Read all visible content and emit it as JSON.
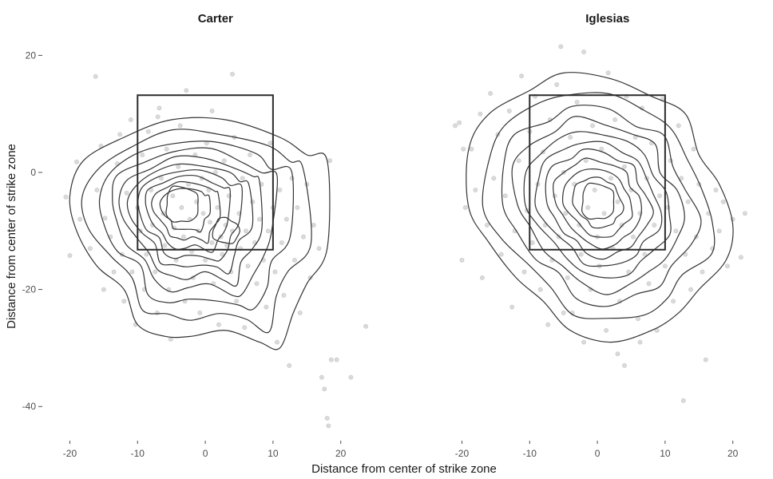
{
  "chart_data": {
    "type": "scatter",
    "xlabel": "Distance from center of strike zone",
    "ylabel": "Distance from center of strike zone",
    "xlim": [
      -21,
      23
    ],
    "ylim": [
      -45.5,
      22.5
    ],
    "x_ticks": [
      -20,
      -10,
      0,
      10,
      20
    ],
    "y_ticks": [
      -40,
      -20,
      0,
      20
    ],
    "strike_zone": {
      "x": [
        -10,
        10
      ],
      "y": [
        -13.2,
        13.2
      ]
    },
    "grid": false,
    "legend": "none",
    "facets": [
      {
        "name": "Carter",
        "density_peaks": [
          [
            -3.5,
            -5.5
          ],
          [
            3,
            -10
          ]
        ],
        "outer_contour": [
          [
            -20,
            -4
          ],
          [
            -18,
            2
          ],
          [
            -12,
            6
          ],
          [
            -5,
            9
          ],
          [
            3,
            9
          ],
          [
            11,
            6
          ],
          [
            15,
            3
          ],
          [
            18,
            2
          ],
          [
            18,
            -13
          ],
          [
            15,
            -19
          ],
          [
            13,
            -24
          ],
          [
            11,
            -30
          ],
          [
            8,
            -29
          ],
          [
            3,
            -27
          ],
          [
            -2,
            -28
          ],
          [
            -6,
            -28
          ],
          [
            -10,
            -26
          ],
          [
            -12,
            -20
          ],
          [
            -16,
            -16
          ],
          [
            -19,
            -10
          ]
        ],
        "points": [
          [
            -20.6,
            -4.2
          ],
          [
            -20,
            -14.2
          ],
          [
            -19,
            1.8
          ],
          [
            -18.5,
            -8
          ],
          [
            -17,
            -13
          ],
          [
            -16.2,
            16.4
          ],
          [
            -16,
            -3
          ],
          [
            -15.4,
            4.5
          ],
          [
            -15,
            -20
          ],
          [
            -14.8,
            -7.8
          ],
          [
            -14,
            -11
          ],
          [
            -13.5,
            -17
          ],
          [
            -13,
            1.5
          ],
          [
            -12.6,
            6.5
          ],
          [
            -12.3,
            -14
          ],
          [
            -12,
            -22
          ],
          [
            -11.6,
            -3.5
          ],
          [
            -11,
            9
          ],
          [
            -10.8,
            -17
          ],
          [
            -10.3,
            -26
          ],
          [
            -10,
            -6
          ],
          [
            -9.6,
            -10
          ],
          [
            -9.3,
            3
          ],
          [
            -9,
            -20
          ],
          [
            -8.7,
            -14
          ],
          [
            -8.4,
            7
          ],
          [
            -8,
            -3
          ],
          [
            -7.8,
            -9
          ],
          [
            -7.4,
            -17
          ],
          [
            -7.1,
            -24
          ],
          [
            -6.8,
            11
          ],
          [
            -6.5,
            -1
          ],
          [
            -6.2,
            -7
          ],
          [
            -6,
            -12.5
          ],
          [
            -5.7,
            4
          ],
          [
            -5.4,
            -20
          ],
          [
            -5.1,
            -28.5
          ],
          [
            -4.8,
            -4
          ],
          [
            -4.6,
            -9.5
          ],
          [
            -4.3,
            -15
          ],
          [
            -4,
            1
          ],
          [
            -3.7,
            8
          ],
          [
            -3.5,
            -6
          ],
          [
            -3.2,
            -11
          ],
          [
            -3,
            -22
          ],
          [
            -2.8,
            14
          ],
          [
            -2.5,
            -2
          ],
          [
            -2.3,
            -8
          ],
          [
            -2,
            -13.5
          ],
          [
            -1.8,
            -18
          ],
          [
            -1.5,
            3
          ],
          [
            -1.3,
            -5
          ],
          [
            -1,
            -10
          ],
          [
            -0.8,
            -24
          ],
          [
            -0.5,
            -1
          ],
          [
            -0.3,
            -7
          ],
          [
            0,
            -15
          ],
          [
            0.2,
            5
          ],
          [
            0.5,
            -3
          ],
          [
            0.7,
            -8.5
          ],
          [
            1,
            -12
          ],
          [
            1.2,
            -19
          ],
          [
            1.5,
            0
          ],
          [
            1.8,
            -6
          ],
          [
            2,
            -26
          ],
          [
            2.3,
            -11
          ],
          [
            2.5,
            -14
          ],
          [
            2.8,
            2
          ],
          [
            3,
            -9
          ],
          [
            3.2,
            -12.5
          ],
          [
            3.5,
            -4
          ],
          [
            3.8,
            -17
          ],
          [
            4,
            -10
          ],
          [
            4.3,
            6
          ],
          [
            4.6,
            -22
          ],
          [
            5,
            -7
          ],
          [
            5.2,
            -13
          ],
          [
            5.5,
            -1
          ],
          [
            5.8,
            -26.5
          ],
          [
            6,
            -10
          ],
          [
            6.3,
            -16
          ],
          [
            6.6,
            3
          ],
          [
            7,
            -5
          ],
          [
            7.3,
            -12
          ],
          [
            7.6,
            -19
          ],
          [
            8,
            -8
          ],
          [
            8.3,
            -2
          ],
          [
            8.6,
            -15
          ],
          [
            9,
            -23
          ],
          [
            9.3,
            -10
          ],
          [
            9.6,
            5
          ],
          [
            10,
            -6
          ],
          [
            10.3,
            -17
          ],
          [
            10.6,
            -29
          ],
          [
            11,
            -3
          ],
          [
            11.3,
            -12
          ],
          [
            11.6,
            -21
          ],
          [
            12,
            -8
          ],
          [
            12.4,
            -33
          ],
          [
            12.8,
            -1
          ],
          [
            13.2,
            -15
          ],
          [
            13.6,
            -6
          ],
          [
            14,
            -24
          ],
          [
            14.5,
            -11
          ],
          [
            15,
            -2
          ],
          [
            15.5,
            -18
          ],
          [
            16,
            -9
          ],
          [
            16.8,
            -13
          ],
          [
            17.2,
            -35
          ],
          [
            17.6,
            -37
          ],
          [
            18,
            -42
          ],
          [
            18.2,
            -43.3
          ],
          [
            18.4,
            2
          ],
          [
            18.6,
            -32
          ],
          [
            19.4,
            -32
          ],
          [
            21.5,
            -35
          ],
          [
            23.7,
            -26.3
          ],
          [
            -7,
            9.5
          ],
          [
            1,
            10.5
          ],
          [
            4,
            16.8
          ]
        ]
      },
      {
        "name": "Iglesias",
        "density_peaks": [
          [
            0,
            -5
          ]
        ],
        "outer_contour": [
          [
            -19,
            -6
          ],
          [
            -19,
            4
          ],
          [
            -16,
            10
          ],
          [
            -10,
            14
          ],
          [
            -5,
            17
          ],
          [
            2,
            16
          ],
          [
            8,
            13
          ],
          [
            13,
            10
          ],
          [
            15,
            3
          ],
          [
            18,
            -2
          ],
          [
            20,
            -9
          ],
          [
            19,
            -15
          ],
          [
            15,
            -20
          ],
          [
            12,
            -24
          ],
          [
            8,
            -27
          ],
          [
            2,
            -29
          ],
          [
            -4,
            -27
          ],
          [
            -8,
            -22
          ],
          [
            -12,
            -18
          ],
          [
            -16,
            -12
          ]
        ],
        "points": [
          [
            -20.4,
            8.5
          ],
          [
            -20,
            -15
          ],
          [
            -19.5,
            -6
          ],
          [
            -18.6,
            4
          ],
          [
            -18,
            -3
          ],
          [
            -17.3,
            10
          ],
          [
            -17,
            -18
          ],
          [
            -16.3,
            -9
          ],
          [
            -15.8,
            13.5
          ],
          [
            -15.3,
            -1
          ],
          [
            -14.7,
            6.5
          ],
          [
            -14.2,
            -14
          ],
          [
            -13.6,
            -4
          ],
          [
            -13,
            10.5
          ],
          [
            -12.6,
            -23
          ],
          [
            -12.2,
            -10
          ],
          [
            -11.6,
            2
          ],
          [
            -11.2,
            16.5
          ],
          [
            -10.8,
            -17
          ],
          [
            -10.4,
            -6.5
          ],
          [
            -10,
            7
          ],
          [
            -9.6,
            -12
          ],
          [
            -9.2,
            13
          ],
          [
            -8.8,
            -2
          ],
          [
            -8.4,
            -20
          ],
          [
            -8,
            3.5
          ],
          [
            -7.7,
            -9
          ],
          [
            -7.3,
            -26
          ],
          [
            -7,
            9
          ],
          [
            -6.7,
            -15
          ],
          [
            -6.3,
            -4
          ],
          [
            -6,
            15
          ],
          [
            -5.7,
            -11
          ],
          [
            -5.4,
            21.5
          ],
          [
            -5,
            0
          ],
          [
            -4.7,
            -7
          ],
          [
            -4.4,
            -18
          ],
          [
            -4,
            6
          ],
          [
            -3.7,
            -24
          ],
          [
            -3.4,
            -2
          ],
          [
            -3,
            12
          ],
          [
            -2.7,
            -9
          ],
          [
            -2.4,
            -14
          ],
          [
            -2,
            20.6
          ],
          [
            -1.7,
            2
          ],
          [
            -1.4,
            -6
          ],
          [
            -1,
            -20
          ],
          [
            -0.7,
            8
          ],
          [
            -0.4,
            -3
          ],
          [
            0,
            -11
          ],
          [
            0.3,
            -16
          ],
          [
            0.6,
            4
          ],
          [
            1,
            -7
          ],
          [
            1.3,
            -27
          ],
          [
            1.6,
            17
          ],
          [
            2,
            -1
          ],
          [
            2.3,
            -13
          ],
          [
            2.6,
            9
          ],
          [
            3,
            -5
          ],
          [
            3.3,
            -22
          ],
          [
            3.6,
            -9
          ],
          [
            4,
            1
          ],
          [
            4.3,
            13
          ],
          [
            4.6,
            -17
          ],
          [
            5,
            -3
          ],
          [
            5.3,
            -11
          ],
          [
            5.6,
            6
          ],
          [
            6,
            -25
          ],
          [
            6.3,
            -7
          ],
          [
            6.6,
            11
          ],
          [
            7,
            -14
          ],
          [
            7.3,
            -1
          ],
          [
            7.6,
            -19
          ],
          [
            8,
            5
          ],
          [
            8.4,
            -9
          ],
          [
            8.8,
            -27
          ],
          [
            9.2,
            -4
          ],
          [
            9.6,
            12.5
          ],
          [
            10,
            -16
          ],
          [
            10.4,
            -6
          ],
          [
            10.8,
            2
          ],
          [
            11.2,
            -22
          ],
          [
            11.6,
            -10
          ],
          [
            12,
            8
          ],
          [
            12.4,
            -1
          ],
          [
            12.7,
            -39
          ],
          [
            13,
            -14
          ],
          [
            13.4,
            -5
          ],
          [
            13.8,
            -20
          ],
          [
            14.2,
            4
          ],
          [
            14.6,
            -11
          ],
          [
            15,
            -2
          ],
          [
            15.5,
            -17
          ],
          [
            16,
            -32
          ],
          [
            16.4,
            -7
          ],
          [
            17,
            -13
          ],
          [
            17.5,
            -3
          ],
          [
            18,
            -10
          ],
          [
            18.6,
            -5
          ],
          [
            19.2,
            -16
          ],
          [
            20,
            -8
          ],
          [
            21.2,
            -14.5
          ],
          [
            21.8,
            -7
          ],
          [
            -19.8,
            4
          ],
          [
            -21,
            8
          ],
          [
            -2,
            -29
          ],
          [
            3,
            -31
          ],
          [
            4,
            -33
          ],
          [
            -5,
            -24
          ],
          [
            6.3,
            -29
          ]
        ]
      }
    ]
  }
}
